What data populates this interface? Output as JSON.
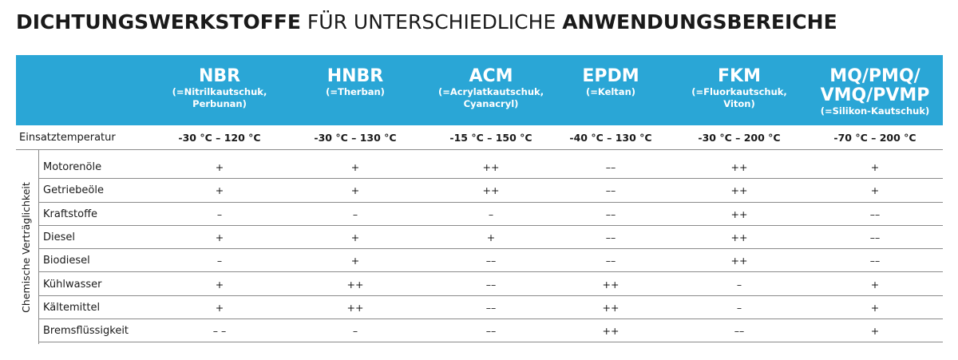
{
  "title": {
    "part1": "DICHTUNGSWERKSTOFFE",
    "part2": "FÜR UNTERSCHIEDLICHE",
    "part3": "ANWENDUNGSBEREICHE"
  },
  "columns": [
    {
      "name": "NBR",
      "sub1": "(=Nitrilkautschuk,",
      "sub2": "Perbunan)",
      "sub3": ""
    },
    {
      "name": "HNBR",
      "sub1": "(=Therban)",
      "sub2": "",
      "sub3": ""
    },
    {
      "name": "ACM",
      "sub1": "(=Acrylatkautschuk,",
      "sub2": "Cyanacryl)",
      "sub3": ""
    },
    {
      "name": "EPDM",
      "sub1": "(=Keltan)",
      "sub2": "",
      "sub3": ""
    },
    {
      "name": "FKM",
      "sub1": "(=Fluorkautschuk,",
      "sub2": "Viton)",
      "sub3": ""
    },
    {
      "name": "MQ/PMQ/",
      "name2": "VMQ/PVMP",
      "sub1": "(=Silikon-Kautschuk)"
    }
  ],
  "temperature": {
    "label": "Einsatztemperatur",
    "values": [
      "-30 °C – 120 °C",
      "-30 °C – 130 °C",
      "-15 °C – 150 °C",
      "-40 °C – 130 °C",
      "-30 °C – 200 °C",
      "-70 °C – 200 °C"
    ]
  },
  "group_label": "Chemische Verträglichkeit",
  "rows": [
    {
      "label": "Motorenöle",
      "values": [
        "+",
        "+",
        "++",
        "––",
        "++",
        "+"
      ]
    },
    {
      "label": "Getriebeöle",
      "values": [
        "+",
        "+",
        "++",
        "––",
        "++",
        "+"
      ]
    },
    {
      "label": "Kraftstoffe",
      "values": [
        "–",
        "–",
        "–",
        "––",
        "++",
        "––"
      ]
    },
    {
      "label": "Diesel",
      "values": [
        "+",
        "+",
        "+",
        "––",
        "++",
        "––"
      ]
    },
    {
      "label": "Biodiesel",
      "values": [
        "–",
        "+",
        "––",
        "––",
        "++",
        "––"
      ]
    },
    {
      "label": "Kühlwasser",
      "values": [
        "+",
        "++",
        "––",
        "++",
        "–",
        "+"
      ]
    },
    {
      "label": "Kältemittel",
      "values": [
        "+",
        "++",
        "––",
        "++",
        "–",
        "+"
      ]
    },
    {
      "label": "Bremsflüssigkeit",
      "values": [
        "– –",
        "–",
        "––",
        "++",
        "––",
        "+"
      ]
    }
  ],
  "colors": {
    "header_bg": "#2aa6d6",
    "header_text": "#ffffff",
    "rule": "#8a8a8a"
  }
}
